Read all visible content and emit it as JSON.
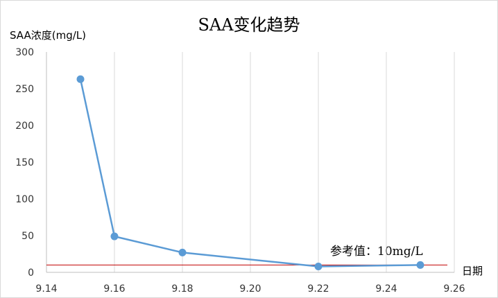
{
  "chart_data": {
    "type": "line",
    "title": "SAA变化趋势",
    "ylabel": "SAA浓度(mg/L)",
    "xlabel": "日期",
    "x": [
      9.15,
      9.16,
      9.18,
      9.22,
      9.25
    ],
    "series": [
      {
        "values": [
          263,
          49,
          27,
          8,
          10
        ],
        "color": "#5b9bd5"
      }
    ],
    "reference_line": {
      "value": 10,
      "label": "参考值：10mg/L",
      "color": "#c00000"
    },
    "xlim": [
      9.14,
      9.26
    ],
    "ylim": [
      0,
      300
    ],
    "x_ticks": [
      "9.14",
      "9.16",
      "9.18",
      "9.20",
      "9.22",
      "9.24",
      "9.26"
    ],
    "y_ticks": [
      "0",
      "50",
      "100",
      "150",
      "200",
      "250",
      "300"
    ],
    "grid": "vertical",
    "legend": "none"
  }
}
